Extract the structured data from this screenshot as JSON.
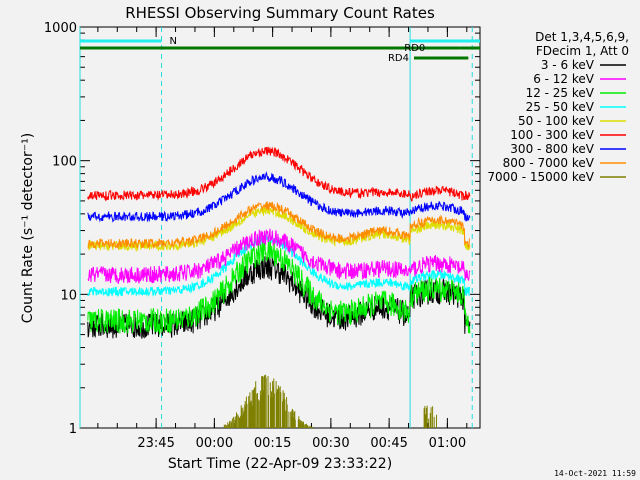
{
  "chart_data": {
    "type": "line",
    "title": "RHESSI Observing Summary Count Rates",
    "xlabel": "Start Time (22-Apr-09 23:33:22)",
    "ylabel": "Count Rate (s⁻¹ detector⁻¹)",
    "yscale": "log",
    "ylim": [
      1,
      1000
    ],
    "xlim_minutes": [
      -8,
      95
    ],
    "x_tick_labels": [
      "23:45",
      "00:00",
      "00:15",
      "00:30",
      "00:45",
      "01:00"
    ],
    "x_tick_minutes": [
      11.6,
      26.6,
      41.6,
      56.6,
      71.6,
      86.6
    ],
    "y_tick_labels": [
      "1",
      "10",
      "100",
      "1000"
    ],
    "y_tick_values": [
      1,
      10,
      100,
      1000
    ],
    "legend_header": [
      "Det 1,3,4,5,6,9,",
      "FDecim 1, Att 0"
    ],
    "legend_placement": "right",
    "series": [
      {
        "name": "3 - 6 keV",
        "color": "#000000",
        "base": 5.8,
        "peak": 16,
        "ramp": 10.5
      },
      {
        "name": "6 - 12 keV",
        "color": "#ff00ff",
        "base": 14,
        "peak": 27,
        "ramp": 17
      },
      {
        "name": "12 - 25 keV",
        "color": "#00ee00",
        "base": 6.3,
        "peak": 21,
        "ramp": 11
      },
      {
        "name": "25 - 50 keV",
        "color": "#00ffff",
        "base": 10.5,
        "peak": 26,
        "ramp": 14
      },
      {
        "name": "50 - 100 keV",
        "color": "#dddd00",
        "base": 23,
        "peak": 42,
        "ramp": 33
      },
      {
        "name": "100 - 300 keV",
        "color": "#ff0000",
        "base": 55,
        "peak": 118,
        "ramp": 60
      },
      {
        "name": "300 - 800 keV",
        "color": "#0000ff",
        "base": 38,
        "peak": 75,
        "ramp": 46
      },
      {
        "name": "800 - 7000 keV",
        "color": "#ff8c00",
        "base": 24,
        "peak": 46,
        "ramp": 36
      },
      {
        "name": "7000 - 15000 keV",
        "color": "#808000",
        "base": 1,
        "peak": 2.6,
        "ramp": 1.5
      }
    ],
    "annotations": {
      "night_label": "N",
      "saa_labels": [
        "RD0",
        "RD4"
      ],
      "night_intervals_minutes": [
        [
          -8,
          13
        ],
        [
          77,
          95
        ]
      ],
      "saa_rd0_minutes": [
        [
          -8,
          90
        ],
        [
          90,
          95
        ]
      ],
      "saa_rd4_minutes": [
        [
          78,
          92
        ]
      ],
      "vertical_markers_minutes": [
        -8,
        13,
        77,
        93
      ]
    }
  },
  "footer": {
    "timestamp": "14-Oct-2021 11:59"
  }
}
